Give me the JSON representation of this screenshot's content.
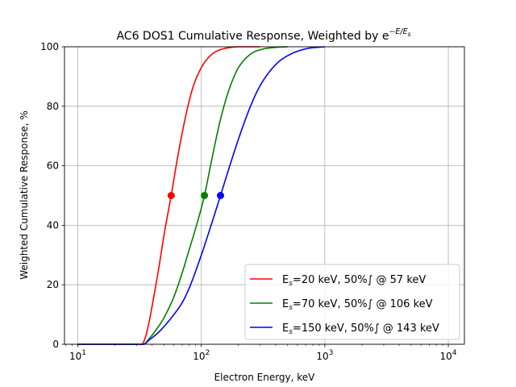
{
  "chart_data": {
    "type": "line",
    "title": "AC6 DOS1 Cumulative Response, Weighted by e",
    "title_exponent": "−E/E",
    "title_exponent_sub": "s",
    "xlabel": "Electron Energy, keV",
    "ylabel": "Weighted Cumulative Response, %",
    "xscale": "log",
    "xlim": [
      7.8,
      13500
    ],
    "ylim": [
      0,
      100
    ],
    "grid": true,
    "legend_position": "lower-right",
    "x_ticks": [
      {
        "value": 10,
        "base": "10",
        "exp": "1"
      },
      {
        "value": 100,
        "base": "10",
        "exp": "2"
      },
      {
        "value": 1000,
        "base": "10",
        "exp": "3"
      },
      {
        "value": 10000,
        "base": "10",
        "exp": "4"
      }
    ],
    "y_ticks": [
      {
        "value": 0,
        "label": "0"
      },
      {
        "value": 20,
        "label": "20"
      },
      {
        "value": 40,
        "label": "40"
      },
      {
        "value": 60,
        "label": "60"
      },
      {
        "value": 80,
        "label": "80"
      },
      {
        "value": 100,
        "label": "100"
      }
    ],
    "series": [
      {
        "color": "#ff0000",
        "legend": {
          "pre": "E",
          "sub": "s",
          "post": "=20 keV, 50%∫ @ 57 keV"
        },
        "half_point": {
          "x": 57,
          "y": 50
        },
        "x": [
          10,
          30,
          33,
          35,
          38,
          40,
          45,
          50,
          57,
          65,
          75,
          85,
          100,
          115,
          130,
          150,
          175,
          200,
          250,
          300
        ],
        "y": [
          0,
          0,
          0,
          2,
          8,
          13,
          25,
          37,
          50,
          64,
          77,
          86,
          93,
          96.5,
          98.3,
          99.3,
          99.8,
          100,
          100,
          100
        ]
      },
      {
        "color": "#008000",
        "legend": {
          "pre": "E",
          "sub": "s",
          "post": "=70 keV, 50%∫ @ 106 keV"
        },
        "half_point": {
          "x": 106,
          "y": 50
        },
        "x": [
          10,
          30,
          34,
          38,
          45,
          50,
          60,
          70,
          80,
          90,
          106,
          120,
          140,
          160,
          180,
          200,
          250,
          300,
          400,
          500
        ],
        "y": [
          0,
          0,
          0,
          2,
          6,
          9,
          16,
          24,
          32,
          39,
          50,
          61,
          74,
          83,
          89,
          93,
          97.5,
          99,
          99.8,
          100
        ]
      },
      {
        "color": "#0000ff",
        "legend": {
          "pre": "E",
          "sub": "s",
          "post": "=150 keV, 50%∫ @ 143 keV"
        },
        "half_point": {
          "x": 143,
          "y": 50
        },
        "x": [
          10,
          30,
          34,
          38,
          45,
          50,
          60,
          70,
          80,
          100,
          120,
          143,
          170,
          200,
          250,
          300,
          400,
          500,
          700,
          1000
        ],
        "y": [
          0,
          0,
          0,
          1.5,
          4,
          6,
          10,
          14,
          19,
          30,
          40,
          50,
          60,
          69,
          80,
          87,
          94,
          97,
          99.3,
          100
        ]
      }
    ]
  }
}
